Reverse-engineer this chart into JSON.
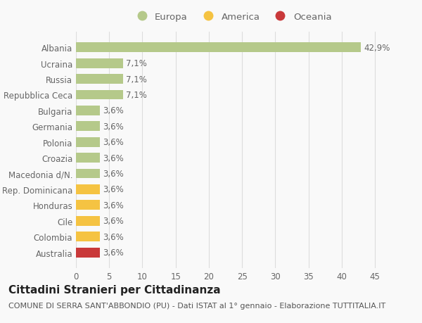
{
  "categories": [
    "Australia",
    "Colombia",
    "Cile",
    "Honduras",
    "Rep. Dominicana",
    "Macedonia d/N.",
    "Croazia",
    "Polonia",
    "Germania",
    "Bulgaria",
    "Repubblica Ceca",
    "Russia",
    "Ucraina",
    "Albania"
  ],
  "values": [
    3.6,
    3.6,
    3.6,
    3.6,
    3.6,
    3.6,
    3.6,
    3.6,
    3.6,
    3.6,
    7.1,
    7.1,
    7.1,
    42.9
  ],
  "labels": [
    "3,6%",
    "3,6%",
    "3,6%",
    "3,6%",
    "3,6%",
    "3,6%",
    "3,6%",
    "3,6%",
    "3,6%",
    "3,6%",
    "7,1%",
    "7,1%",
    "7,1%",
    "42,9%"
  ],
  "colors": [
    "#c9393a",
    "#f5c342",
    "#f5c342",
    "#f5c342",
    "#f5c342",
    "#b5c98a",
    "#b5c98a",
    "#b5c98a",
    "#b5c98a",
    "#b5c98a",
    "#b5c98a",
    "#b5c98a",
    "#b5c98a",
    "#b5c98a"
  ],
  "legend_labels": [
    "Europa",
    "America",
    "Oceania"
  ],
  "legend_colors": [
    "#b5c98a",
    "#f5c342",
    "#c9393a"
  ],
  "title": "Cittadini Stranieri per Cittadinanza",
  "subtitle": "COMUNE DI SERRA SANT'ABBONDIO (PU) - Dati ISTAT al 1° gennaio - Elaborazione TUTTITALIA.IT",
  "xlim": [
    0,
    47
  ],
  "xticks": [
    0,
    5,
    10,
    15,
    20,
    25,
    30,
    35,
    40,
    45
  ],
  "background_color": "#f9f9f9",
  "grid_color": "#dddddd",
  "bar_height": 0.62,
  "title_fontsize": 11,
  "subtitle_fontsize": 8,
  "label_fontsize": 8.5,
  "tick_fontsize": 8.5,
  "legend_fontsize": 9.5
}
